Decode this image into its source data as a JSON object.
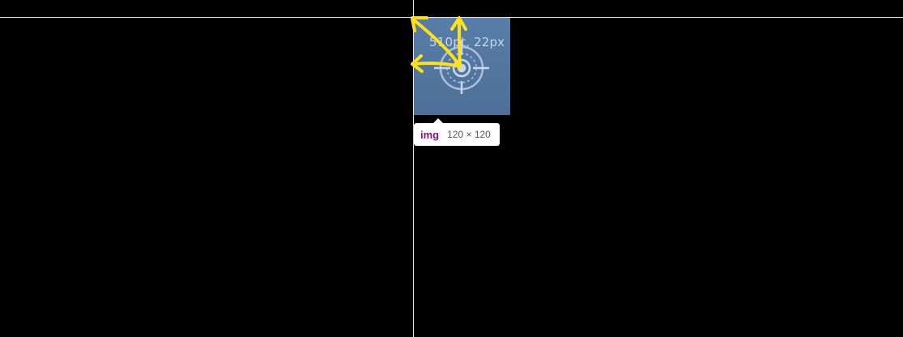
{
  "inspector": {
    "element_tag": "img",
    "element_size": "120 × 120",
    "coordinate_readout": "510pt, 22px"
  },
  "colors": {
    "image_background": "#4f7399",
    "guide_line": "#e6e6e6",
    "annotation": "#ffe11a",
    "tag_color": "#881280"
  },
  "icons": {
    "image_content": "crosshair-target-icon"
  }
}
